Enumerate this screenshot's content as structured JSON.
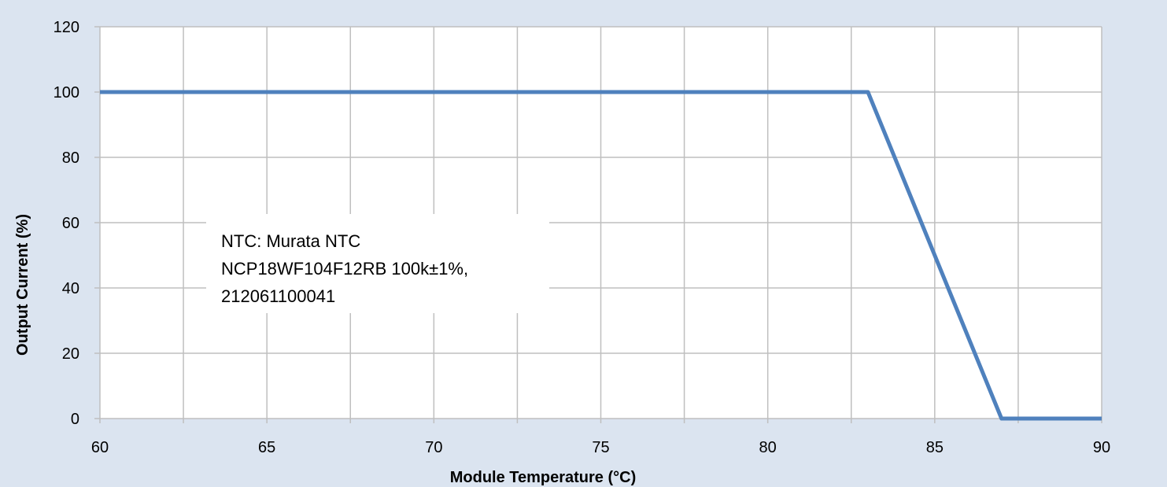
{
  "chart_data": {
    "type": "line",
    "title": "",
    "xlabel": "Module Temperature (°C)",
    "ylabel": "Output Current (%)",
    "xlim": [
      60,
      90
    ],
    "ylim": [
      0,
      120
    ],
    "x_ticks": [
      60,
      65,
      70,
      75,
      80,
      85,
      90
    ],
    "y_ticks": [
      0,
      20,
      40,
      60,
      80,
      100,
      120
    ],
    "grid": true,
    "legend": "none",
    "series": [
      {
        "color": "#4f81bd",
        "x": [
          60,
          83,
          87,
          90
        ],
        "y": [
          100,
          100,
          0,
          0
        ]
      }
    ],
    "annotation": {
      "lines": [
        "NTC: Murata NTC",
        "NCP18WF104F12RB 100k±1%,",
        "212061100041"
      ]
    }
  },
  "colors": {
    "background": "#dbe4f0",
    "plot_area": "#ffffff",
    "grid": "#bfbfbf",
    "series": "#4f81bd"
  }
}
